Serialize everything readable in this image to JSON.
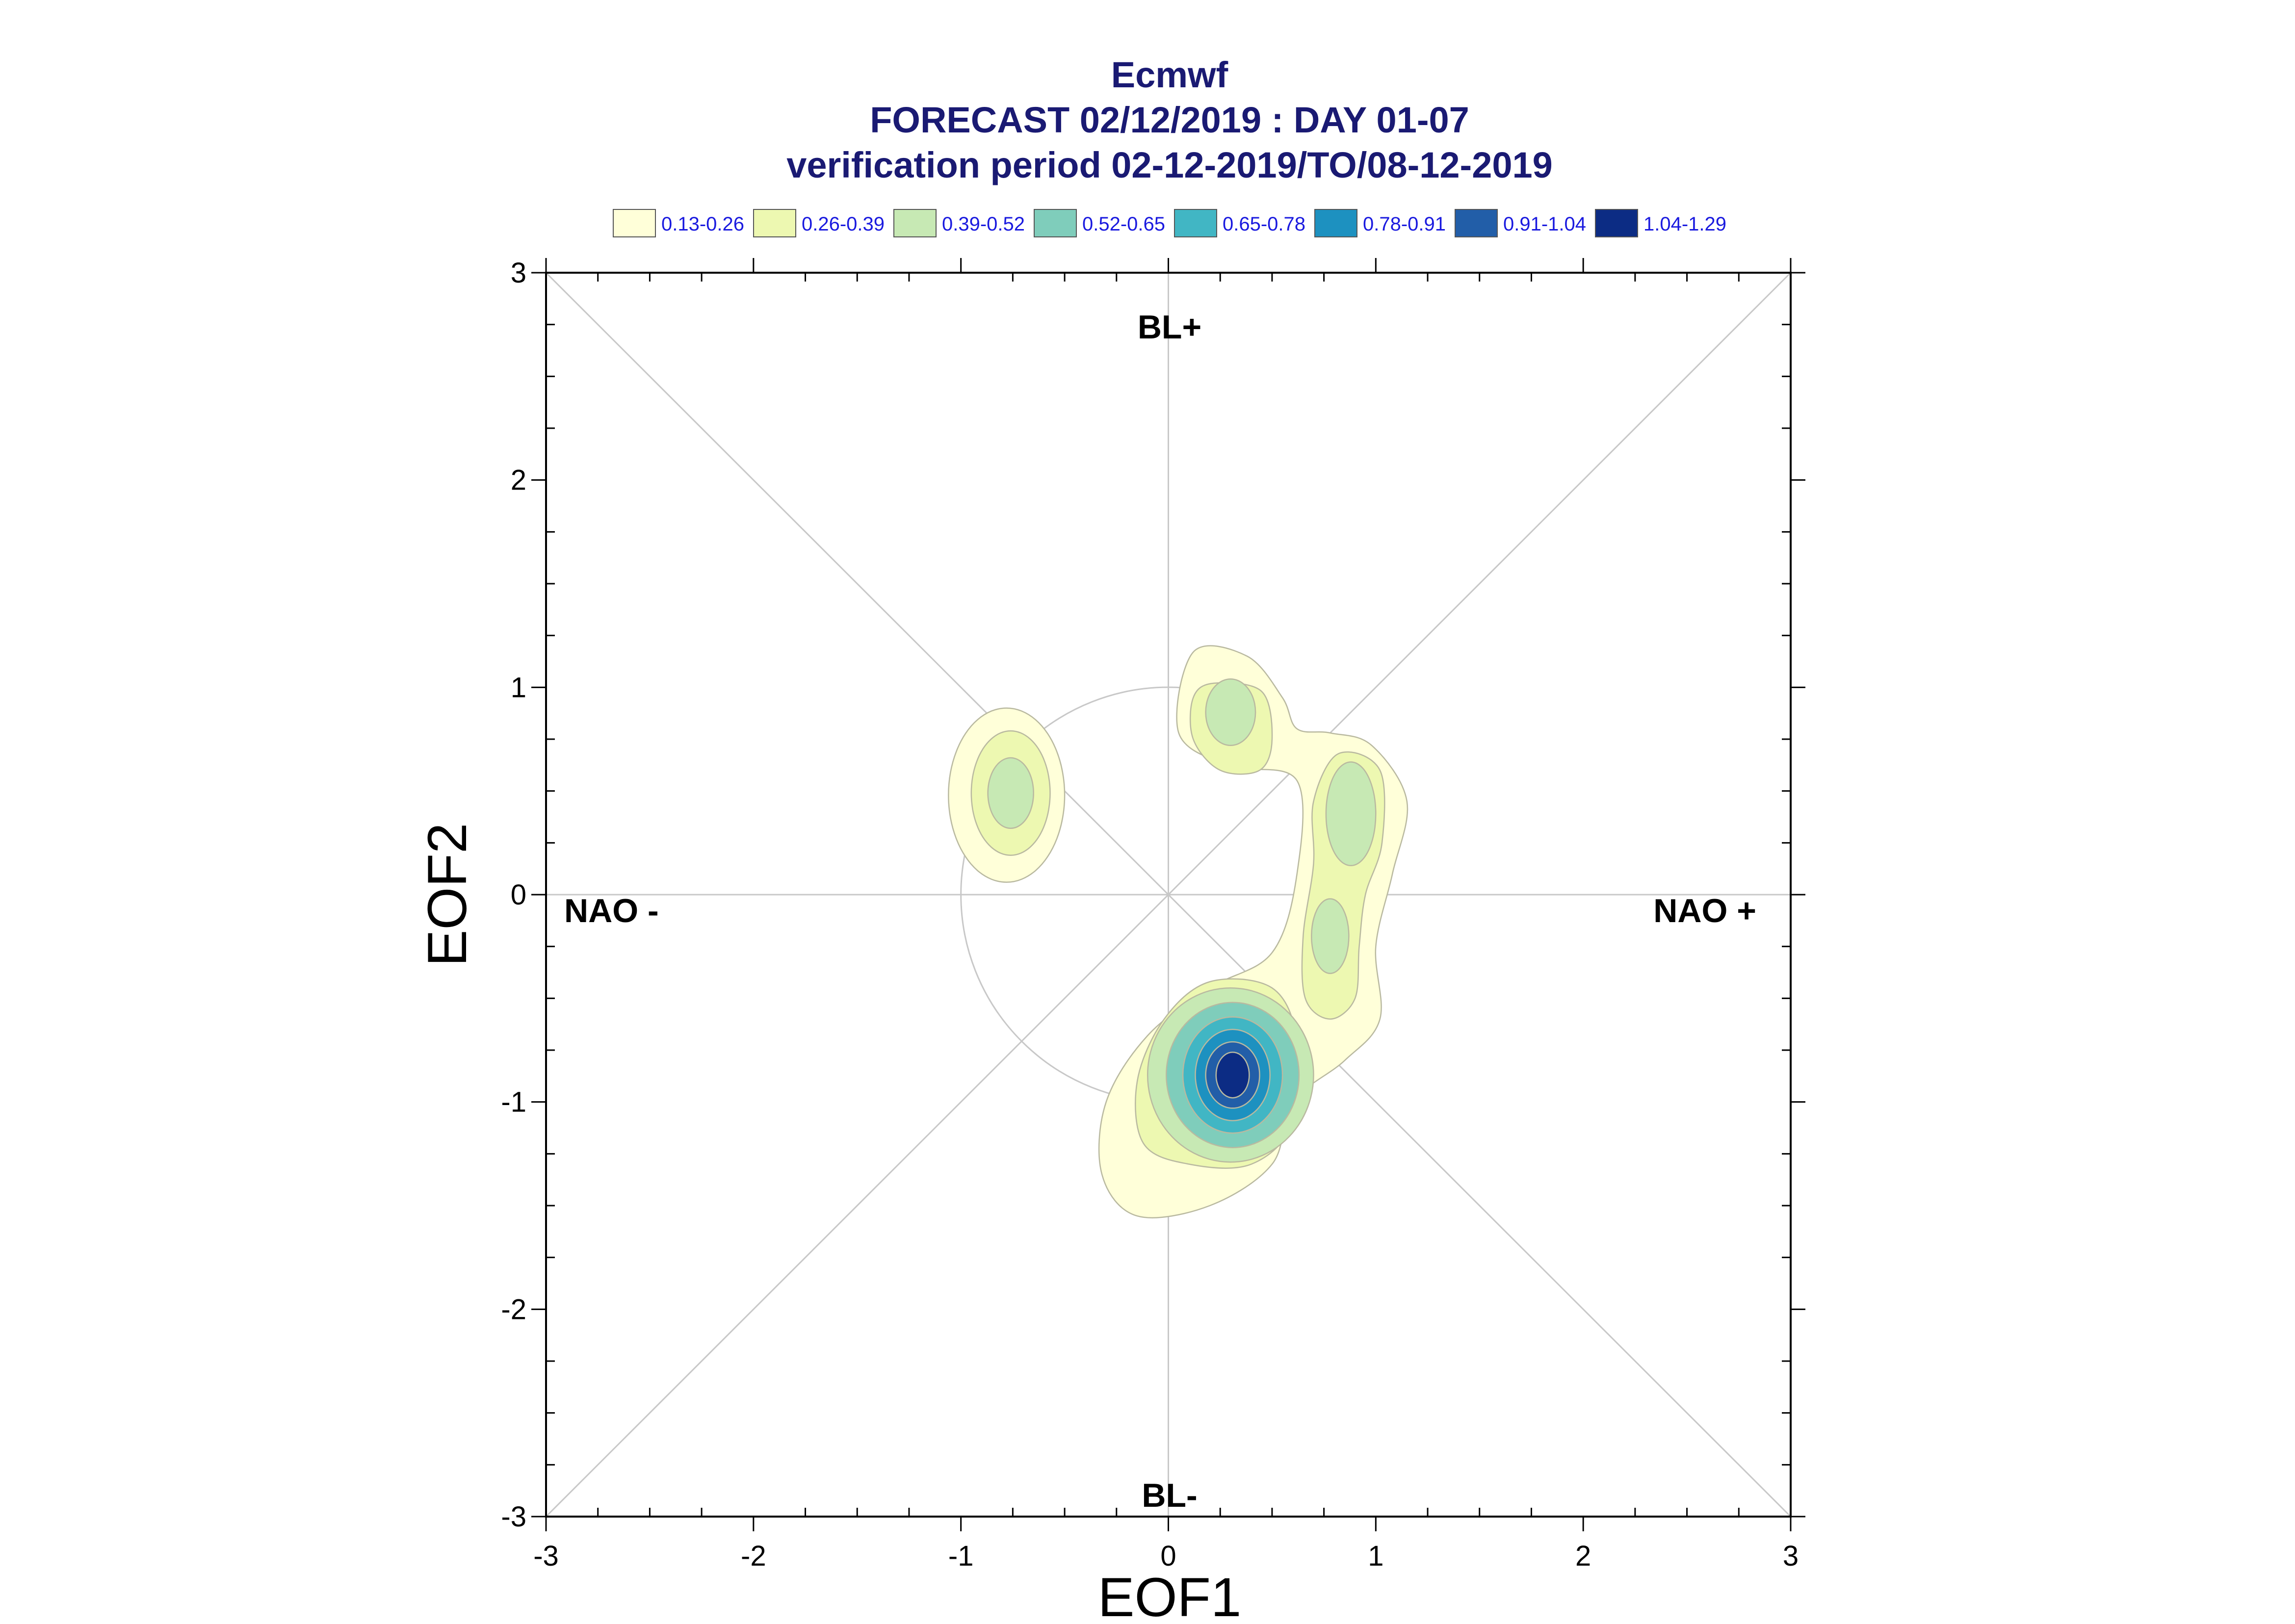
{
  "title": {
    "line1": "Ecmwf",
    "line2": "FORECAST 02/12/2019 : DAY 01-07",
    "line3": "verification period 02-12-2019/TO/08-12-2019"
  },
  "legend": [
    {
      "label": "0.13-0.26",
      "color": "#ffffd9"
    },
    {
      "label": "0.26-0.39",
      "color": "#edf8b1"
    },
    {
      "label": "0.39-0.52",
      "color": "#c7e9b4"
    },
    {
      "label": "0.52-0.65",
      "color": "#7fcdbb"
    },
    {
      "label": "0.65-0.78",
      "color": "#41b6c4"
    },
    {
      "label": "0.78-0.91",
      "color": "#1d91c0"
    },
    {
      "label": "0.91-1.04",
      "color": "#225ea8"
    },
    {
      "label": "1.04-1.29",
      "color": "#0c2c84"
    }
  ],
  "regions": {
    "top": "BL+",
    "bottom": "BL-",
    "left": "NAO -",
    "right": "NAO +"
  },
  "chart_data": {
    "type": "contour",
    "xlabel": "EOF1",
    "ylabel": "EOF2",
    "xlim": [
      -3,
      3
    ],
    "ylim": [
      -3,
      3
    ],
    "xticks": [
      "-3",
      "-2",
      "-1",
      "0",
      "1",
      "2",
      "3"
    ],
    "yticks": [
      "-3",
      "-2",
      "-1",
      "0",
      "1",
      "2",
      "3"
    ],
    "reference_circle_radius": 1,
    "density_levels": [
      0.13,
      0.26,
      0.39,
      0.52,
      0.65,
      0.78,
      0.91,
      1.04,
      1.29
    ],
    "density_peaks": [
      {
        "x": 0.31,
        "y": -0.87,
        "max_level": "1.04-1.29"
      },
      {
        "x": 0.3,
        "y": 0.9,
        "max_level": "0.39-0.52"
      },
      {
        "x": -0.76,
        "y": 0.48,
        "max_level": "0.39-0.52"
      },
      {
        "x": 0.89,
        "y": 0.37,
        "max_level": "0.39-0.52"
      },
      {
        "x": 0.78,
        "y": -0.2,
        "max_level": "0.39-0.52"
      }
    ]
  }
}
